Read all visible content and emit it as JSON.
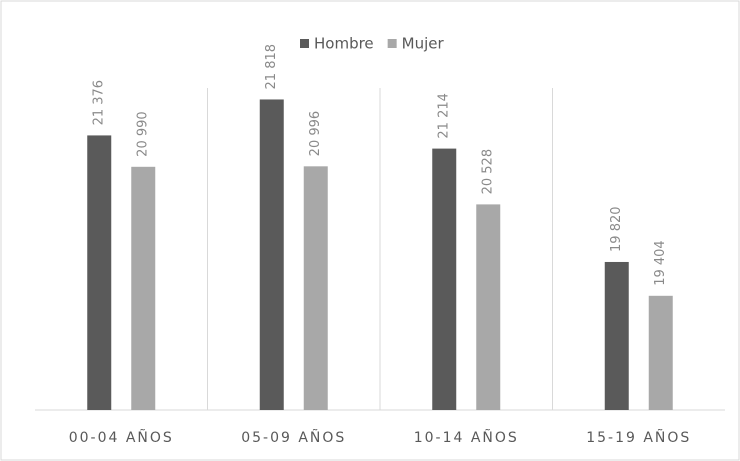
{
  "chart_data": {
    "type": "bar",
    "categories": [
      "00-04 AÑOS",
      "05-09 AÑOS",
      "10-14 AÑOS",
      "15-19 AÑOS"
    ],
    "series": [
      {
        "name": "Hombre",
        "color": "#5a5a5a",
        "values": [
          21376,
          21818,
          21214,
          19820
        ],
        "value_labels": [
          "21 376",
          "21 818",
          "21 214",
          "19 820"
        ]
      },
      {
        "name": "Mujer",
        "color": "#a8a8a8",
        "values": [
          20990,
          20996,
          20528,
          19404
        ],
        "value_labels": [
          "20 990",
          "20 996",
          "20 528",
          "19 404"
        ]
      }
    ],
    "ylim": [
      18000,
      22500
    ]
  }
}
